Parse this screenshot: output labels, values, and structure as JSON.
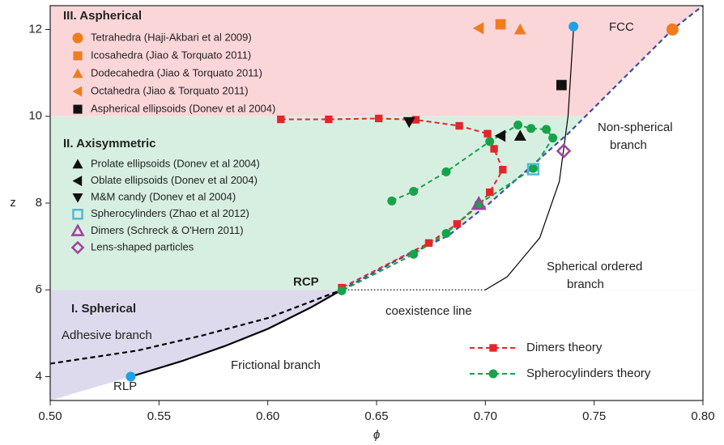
{
  "chart_data": {
    "type": "scatter",
    "xlabel": "ϕ",
    "ylabel": "z",
    "xlim": [
      0.5,
      0.8
    ],
    "ylim": [
      3.45,
      12.55
    ],
    "xticks": [
      {
        "value": 0.5,
        "label": "0.50"
      },
      0.55,
      {
        "value": 0.6,
        "label": "0.60"
      },
      0.65,
      {
        "value": 0.7,
        "label": "0.70"
      },
      0.75,
      {
        "value": 0.8,
        "label": "0.80"
      }
    ],
    "yticks": [
      4,
      6,
      8,
      10,
      12
    ],
    "annotations": [
      "III. Aspherical",
      "II. Axisymmetric",
      "I. Spherical",
      "RCP",
      "FCC",
      "RLP",
      "Adhesive branch",
      "Frictional branch",
      "coexistence line",
      [
        "Spherical ordered",
        "branch"
      ],
      [
        "Non-spherical",
        "branch"
      ]
    ],
    "series": [
      {
        "name": "Dimers theory",
        "color": "#e3262b",
        "marker": "square",
        "line": "dashed",
        "x": [
          0.606,
          0.628,
          0.651,
          0.668,
          0.688,
          0.701,
          0.704,
          0.708,
          0.702,
          0.697,
          0.687,
          0.674,
          0.634
        ],
        "values": [
          9.93,
          9.93,
          9.95,
          9.92,
          9.78,
          9.6,
          9.25,
          8.77,
          8.25,
          7.95,
          7.52,
          7.08,
          6.05
        ]
      },
      {
        "name": "Spherocylinders theory",
        "color": "#17a34a",
        "marker": "circle",
        "line": "dashed",
        "x": [
          0.657,
          0.667,
          0.682,
          0.702,
          0.715,
          0.721,
          0.728,
          0.731,
          0.722,
          0.697,
          0.682,
          0.667,
          0.634
        ],
        "values": [
          8.05,
          8.27,
          8.72,
          9.42,
          9.8,
          9.72,
          9.7,
          9.5,
          8.8,
          7.98,
          7.3,
          6.82,
          5.98
        ]
      },
      {
        "name": "Tetrahedra (Haji-Akbari et al 2009)",
        "color": "#f07c1e",
        "marker": "circle",
        "x": [
          0.786
        ],
        "values": [
          12.0
        ]
      },
      {
        "name": "Icosahedra (Jiao & Torquato 2011)",
        "color": "#f07c1e",
        "marker": "square",
        "x": [
          0.707
        ],
        "values": [
          12.12
        ]
      },
      {
        "name": "Dodecahedra (Jiao & Torquato 2011)",
        "color": "#f07c1e",
        "marker": "triangle-up",
        "x": [
          0.716
        ],
        "values": [
          12.0
        ]
      },
      {
        "name": "Octahedra (Jiao & Torquato 2011)",
        "color": "#f07c1e",
        "marker": "triangle-left",
        "x": [
          0.697
        ],
        "values": [
          12.03
        ]
      },
      {
        "name": "Aspherical ellipsoids (Donev et al 2004)",
        "color": "#111111",
        "marker": "square",
        "x": [
          0.735
        ],
        "values": [
          10.72
        ]
      },
      {
        "name": "Prolate ellipsoids (Donev et al 2004)",
        "color": "#111111",
        "marker": "triangle-up",
        "x": [
          0.716
        ],
        "values": [
          9.55
        ]
      },
      {
        "name": "Oblate ellipsoids (Donev et al 2004)",
        "color": "#111111",
        "marker": "triangle-left",
        "x": [
          0.707
        ],
        "values": [
          9.55
        ]
      },
      {
        "name": "M&M candy (Donev et al 2004)",
        "color": "#111111",
        "marker": "triangle-down",
        "x": [
          0.665
        ],
        "values": [
          9.87
        ]
      },
      {
        "name": "Spherocylinders (Zhao et al 2012)",
        "color": "#4fb9d6",
        "marker": "open-square",
        "x": [
          0.722
        ],
        "values": [
          8.78
        ]
      },
      {
        "name": "Dimers (Schreck & O'Hern 2011)",
        "color": "#a040a0",
        "marker": "open-triangle",
        "x": [
          0.697
        ],
        "values": [
          7.98
        ]
      },
      {
        "name": "Lens-shaped particles",
        "color": "#a040a0",
        "marker": "open-diamond",
        "x": [
          0.736
        ],
        "values": [
          9.2
        ]
      },
      {
        "color": "#3a4faa",
        "line": "dashed",
        "x": [
          0.634,
          0.66,
          0.683,
          0.702,
          0.72,
          0.738,
          0.746,
          0.766,
          0.786,
          0.8
        ],
        "values": [
          6.0,
          6.7,
          7.25,
          8.0,
          8.8,
          9.6,
          10.0,
          11.0,
          12.0,
          12.55
        ]
      },
      {
        "color": "#000000",
        "line": "solid",
        "x": [
          0.537,
          0.56,
          0.58,
          0.6,
          0.62,
          0.634
        ],
        "values": [
          4.0,
          4.35,
          4.7,
          5.1,
          5.6,
          6.0
        ]
      },
      {
        "color": "#000000",
        "line": "dashed",
        "x": [
          0.5,
          0.54,
          0.57,
          0.6,
          0.634
        ],
        "values": [
          4.3,
          4.6,
          4.95,
          5.35,
          6.0
        ]
      },
      {
        "color": "#000000",
        "line": "thin",
        "x": [
          0.7405,
          0.738,
          0.734,
          0.725,
          0.71,
          0.7
        ],
        "values": [
          12.0,
          10.0,
          8.5,
          7.2,
          6.3,
          6.0
        ]
      },
      {
        "color": "#000000",
        "line": "dotted",
        "x": [
          0.7,
          0.634
        ],
        "values": [
          6.0,
          6.0
        ]
      },
      {
        "color": "#1ea0e8",
        "marker": "circle",
        "x": [
          0.7405
        ],
        "values": [
          12.07
        ]
      },
      {
        "color": "#1ea0e8",
        "marker": "circle",
        "x": [
          0.537
        ],
        "values": [
          4.0
        ]
      }
    ]
  }
}
